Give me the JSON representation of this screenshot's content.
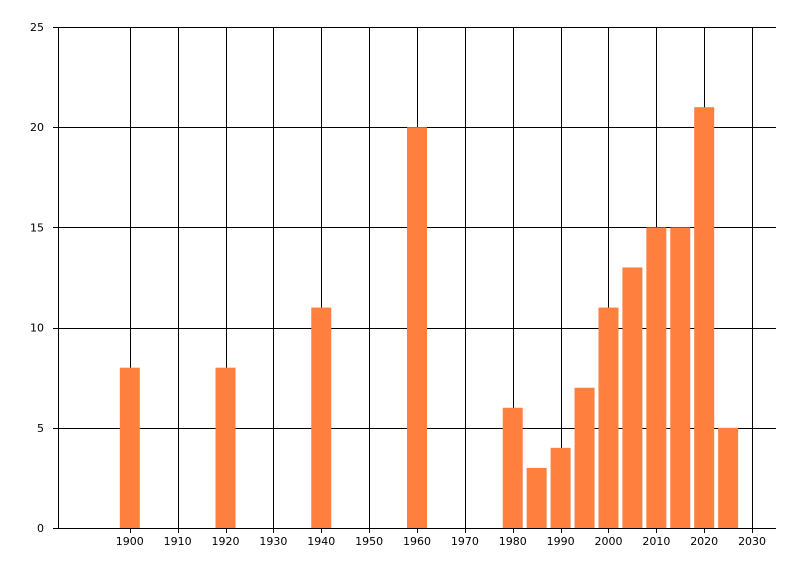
{
  "chart_data": {
    "type": "bar",
    "title": "",
    "xlabel": "",
    "ylabel": "",
    "x": [
      1900,
      1920,
      1940,
      1960,
      1980,
      1985,
      1990,
      1995,
      2000,
      2005,
      2010,
      2015,
      2020,
      2025
    ],
    "values": [
      8,
      8,
      11,
      20,
      6,
      3,
      4,
      7,
      11,
      13,
      15,
      15,
      21,
      5
    ],
    "xlim": [
      1885,
      2035
    ],
    "ylim": [
      0,
      25
    ],
    "x_ticks": [
      1900,
      1910,
      1920,
      1930,
      1940,
      1950,
      1960,
      1970,
      1980,
      1990,
      2000,
      2010,
      2020,
      2030
    ],
    "y_ticks": [
      0,
      5,
      10,
      15,
      20,
      25
    ],
    "grid": true,
    "bar_color": "#ff7f3f",
    "grid_color": "#000000",
    "background": "#ffffff"
  }
}
